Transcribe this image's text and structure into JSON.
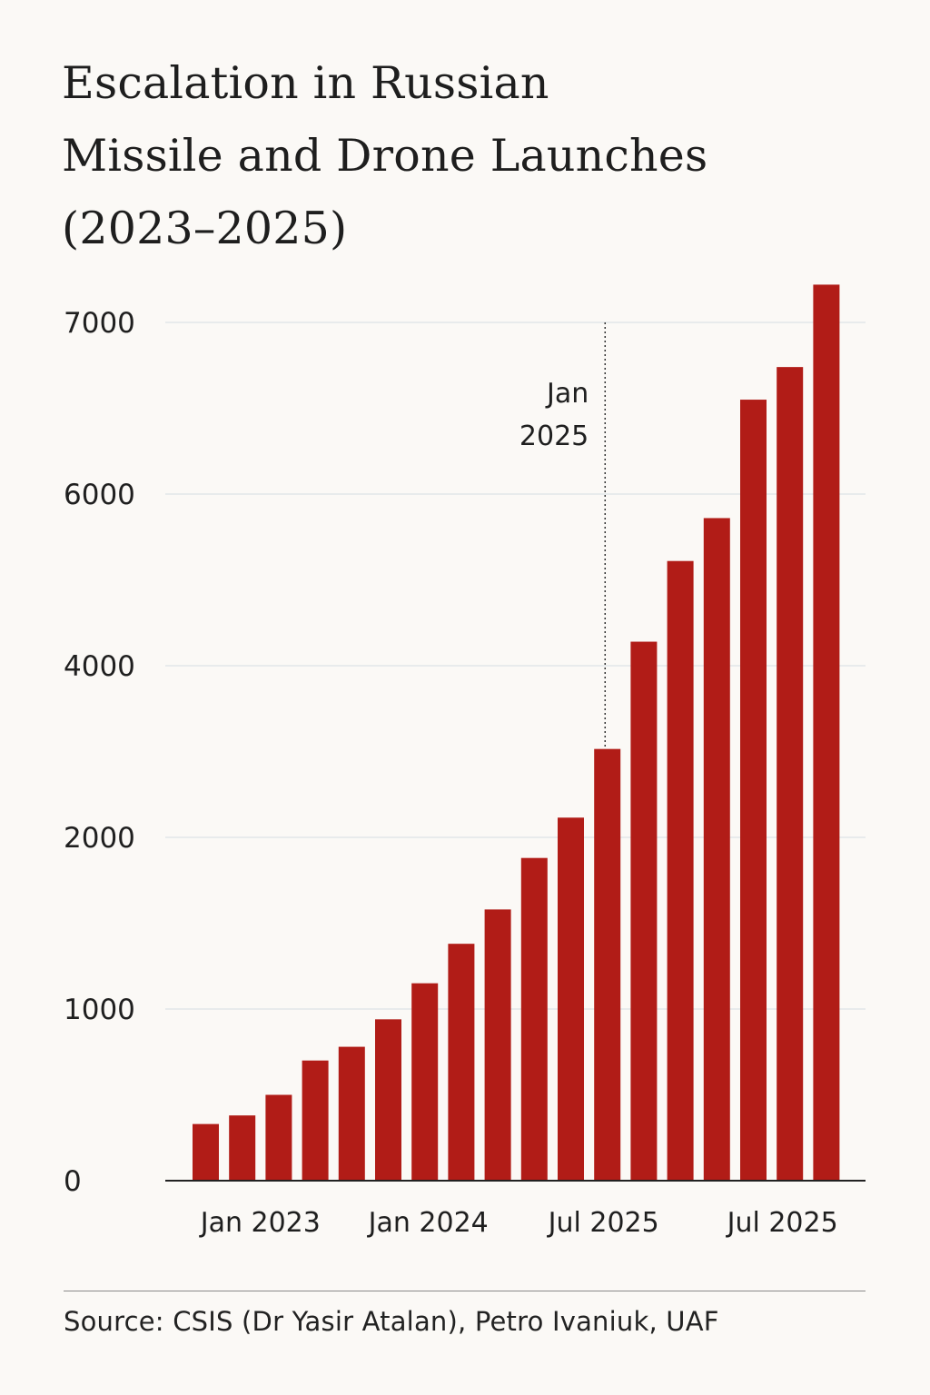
{
  "title_lines": [
    "Escalation in Russian",
    "Missile and Drone Launches",
    "(2023–2025)"
  ],
  "source": "Source: CSIS (Dr Yasir Atalan), Petro Ivaniuk, UAF",
  "colors": {
    "bar": "#b11c17",
    "grid": "#d6dde3",
    "axis": "#222222",
    "text": "#1f1f1f",
    "background": "#fbf9f6"
  },
  "chart_data": {
    "type": "bar",
    "title": "Escalation in Russian Missile and Drone Launches (2023–2025)",
    "xlabel": "",
    "ylabel": "",
    "grid": true,
    "legend": "none",
    "yticks": [
      {
        "value": 0,
        "label": "0",
        "pos": 0
      },
      {
        "value": 1000,
        "label": "1000",
        "pos": 1000
      },
      {
        "value": 2000,
        "label": "2000",
        "pos": 2000
      },
      {
        "value": 4000,
        "label": "4000",
        "pos": 3000
      },
      {
        "value": 6000,
        "label": "6000",
        "pos": 4000
      },
      {
        "value": 7000,
        "label": "7000",
        "pos": 5000
      }
    ],
    "xticks": [
      {
        "label": "Jan 2023",
        "index": 1.5
      },
      {
        "label": "Jan 2024",
        "index": 6.1
      },
      {
        "label": "Jul 2025",
        "index": 10.9
      },
      {
        "label": "Jul 2025",
        "index": 15.8
      }
    ],
    "annotation": {
      "text_lines": [
        "Jan",
        "2025"
      ],
      "index": 11.3,
      "top_pos": 5000
    },
    "series": [
      {
        "values": [
          330,
          380,
          500,
          700,
          780,
          940,
          1150,
          1380,
          1580,
          1880,
          2230,
          3030,
          4280,
          5220,
          5720,
          6550,
          6740,
          7220
        ]
      }
    ]
  }
}
